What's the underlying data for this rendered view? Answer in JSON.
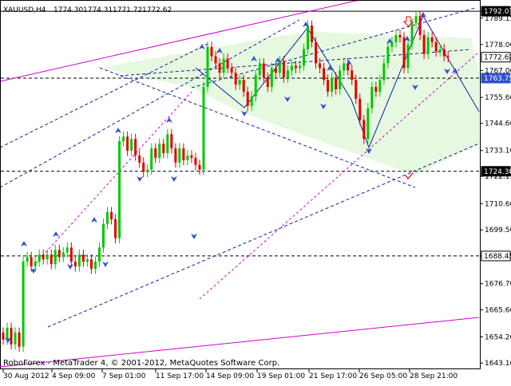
{
  "header": {
    "symbol": "XAUUSD,H4",
    "open": "1774.30",
    "high": "1774.31",
    "low": "1771.72",
    "close": "1772.62"
  },
  "footer": {
    "copyright": "RoboForex - MetaTrader 4, © 2001-2012, MetaQuotes Software Corp."
  },
  "colors": {
    "bull": "#00c800",
    "bear": "#e00000",
    "fractal": "#3050d0",
    "channel": "#d000d0",
    "trend": "#1020a0",
    "zone_fill": "#e6f8e0",
    "text": "#000000"
  },
  "chart_data": {
    "type": "candlestick",
    "instrument": "XAUUSD",
    "timeframe": "H4",
    "price_range": [
      1640.8,
      1796.5
    ],
    "y_ticks": [
      "1792.07",
      "1789.15",
      "1778.00",
      "1767.00",
      "1755.60",
      "1744.60",
      "1733.10",
      "1722.15",
      "1710.60",
      "1699.50",
      "1688.45",
      "1676.70",
      "1665.60",
      "1654.20",
      "1643.10"
    ],
    "x_ticks": [
      "30 Aug 2012",
      "4 Sep 09:00",
      "7 Sep 01:00",
      "11 Sep 17:00",
      "14 Sep 09:00",
      "19 Sep 01:00",
      "21 Sep 17:00",
      "26 Sep 05:00",
      "28 Sep 21:00"
    ],
    "price_labels": [
      {
        "value": "1792.07",
        "price": 1792.07,
        "style": "black"
      },
      {
        "value": "1772.62",
        "price": 1772.62,
        "style": "white"
      },
      {
        "value": "1763.75",
        "price": 1763.75,
        "style": "blue"
      },
      {
        "value": "1724.30",
        "price": 1724.3,
        "style": "black"
      },
      {
        "value": "1688.45",
        "price": 1688.45,
        "style": "white"
      }
    ],
    "horizontal_levels": [
      {
        "price": 1792.07,
        "style": "solid"
      },
      {
        "price": 1763.75,
        "style": "dashed"
      },
      {
        "price": 1724.3,
        "style": "dashed"
      },
      {
        "price": 1688.45,
        "style": "dashed"
      }
    ],
    "candles_close": [
      1653,
      1658,
      1651,
      1656,
      1650,
      1686,
      1688,
      1684,
      1686,
      1689,
      1687,
      1689,
      1685,
      1691,
      1688,
      1690,
      1692,
      1686,
      1684,
      1689,
      1686,
      1687,
      1683,
      1686,
      1692,
      1702,
      1707,
      1704,
      1696,
      1737,
      1739,
      1733,
      1738,
      1731,
      1728,
      1724,
      1725,
      1734,
      1730,
      1736,
      1732,
      1740,
      1734,
      1728,
      1734,
      1729,
      1731,
      1730,
      1727,
      1725,
      1760,
      1777,
      1773,
      1770,
      1766,
      1772,
      1768,
      1766,
      1761,
      1763,
      1758,
      1752,
      1756,
      1765,
      1770,
      1764,
      1760,
      1768,
      1766,
      1771,
      1764,
      1767,
      1769,
      1768,
      1769,
      1776,
      1786,
      1779,
      1770,
      1768,
      1763,
      1758,
      1764,
      1759,
      1767,
      1770,
      1767,
      1763,
      1755,
      1746,
      1738,
      1751,
      1760,
      1758,
      1763,
      1770,
      1777,
      1779,
      1782,
      1781,
      1768,
      1778,
      1787,
      1790,
      1782,
      1774,
      1781,
      1779,
      1775,
      1776,
      1773,
      1772.62
    ]
  }
}
